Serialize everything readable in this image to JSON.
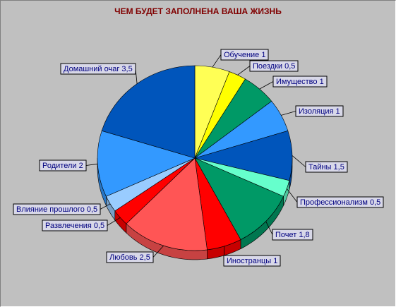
{
  "chart_data": {
    "type": "pie",
    "title": "ЧЕМ БУДЕТ ЗАПОЛНЕНА ВАША ЖИЗНЬ",
    "slices": [
      {
        "label": "Обучение 1",
        "value": 1,
        "color": "#ffff55"
      },
      {
        "label": "Поездки 0,5",
        "value": 0.5,
        "color": "#ffff00"
      },
      {
        "label": "Имущество 1",
        "value": 1,
        "color": "#009966"
      },
      {
        "label": "Изоляция 1",
        "value": 1,
        "color": "#3399ff"
      },
      {
        "label": "Тайны 1,5",
        "value": 1.5,
        "color": "#0055bb"
      },
      {
        "label": "Профессионализм 0,5",
        "value": 0.5,
        "color": "#66ffcc"
      },
      {
        "label": "Почет 1,8",
        "value": 1.8,
        "color": "#009966"
      },
      {
        "label": "Иностранцы 1",
        "value": 1,
        "color": "#ff0000"
      },
      {
        "label": "Любовь 2,5",
        "value": 2.5,
        "color": "#ff5555"
      },
      {
        "label": "Развлечения 0,5",
        "value": 0.5,
        "color": "#ff0000"
      },
      {
        "label": "Влияние прошлого 0,5",
        "value": 0.5,
        "color": "#99ccff"
      },
      {
        "label": "Родители 2",
        "value": 2,
        "color": "#3399ff"
      },
      {
        "label": "Домашний очаг 3,5",
        "value": 3.5,
        "color": "#0055bb"
      }
    ]
  }
}
